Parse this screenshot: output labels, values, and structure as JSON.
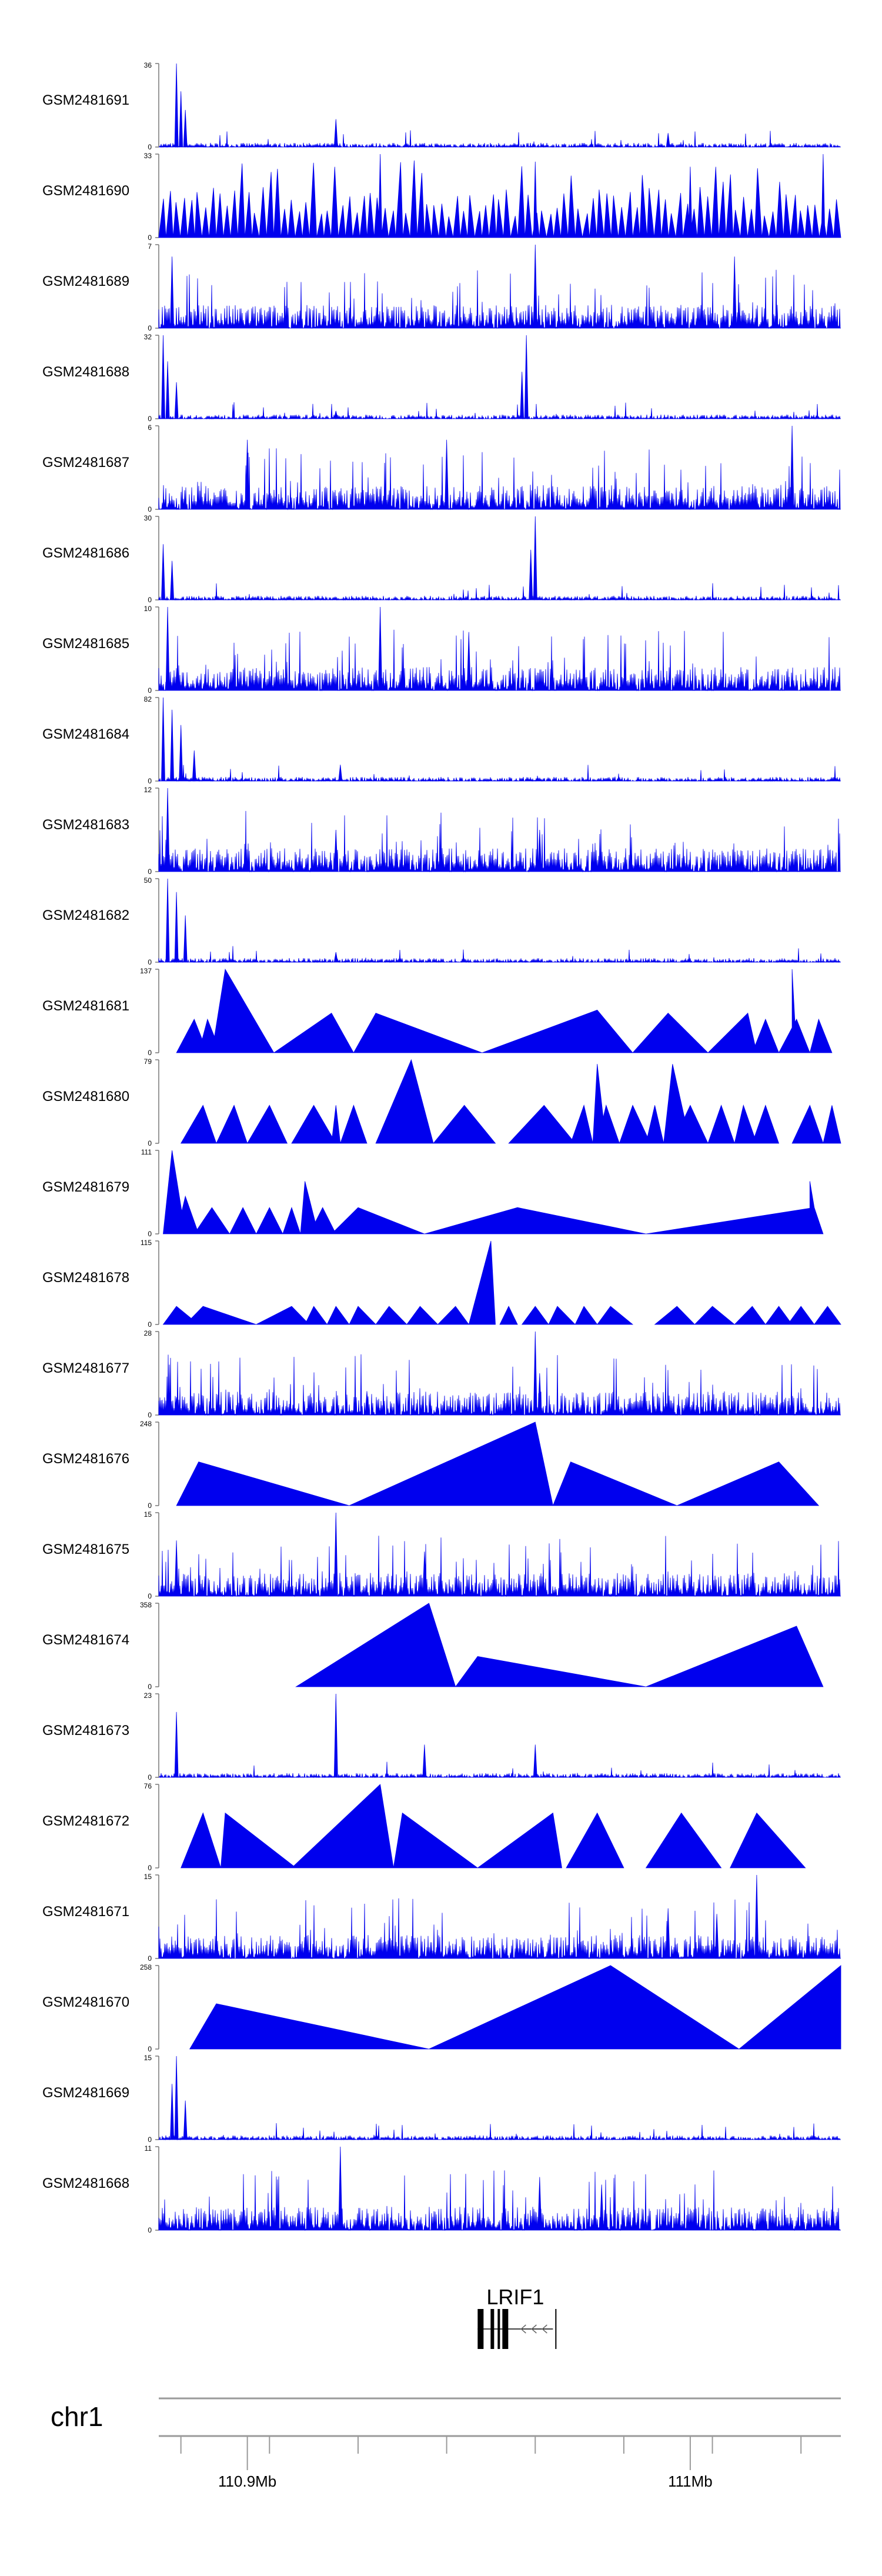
{
  "chart_data": {
    "type": "area",
    "title": "",
    "color": "#0000ee",
    "genome": {
      "chromosome": "chr1",
      "ticks": [
        "110.9Mb",
        "111Mb"
      ],
      "tick_values_mb": [
        110.9,
        111.0
      ],
      "range_mb": [
        110.88,
        111.034
      ]
    },
    "gene": {
      "name": "LRIF1",
      "strand": "-",
      "start_mb": 110.952,
      "end_mb": 110.969
    },
    "tracks": [
      {
        "name": "GSM2481691",
        "ymax": 36,
        "style": "spiky",
        "peaks": [
          {
            "x": 110.884,
            "y": 36
          },
          {
            "x": 110.885,
            "y": 24
          },
          {
            "x": 110.886,
            "y": 16
          },
          {
            "x": 110.92,
            "y": 12
          },
          {
            "x": 110.995,
            "y": 6
          }
        ]
      },
      {
        "name": "GSM2481690",
        "ymax": 33,
        "style": "dense_tri",
        "peaks": [
          {
            "x": 110.93,
            "y": 33
          },
          {
            "x": 110.965,
            "y": 30
          },
          {
            "x": 111.0,
            "y": 28
          },
          {
            "x": 111.03,
            "y": 33
          }
        ]
      },
      {
        "name": "GSM2481689",
        "ymax": 7,
        "style": "noise",
        "peaks": [
          {
            "x": 110.965,
            "y": 7
          },
          {
            "x": 110.883,
            "y": 6
          },
          {
            "x": 111.01,
            "y": 6
          }
        ]
      },
      {
        "name": "GSM2481688",
        "ymax": 32,
        "style": "spiky",
        "peaks": [
          {
            "x": 110.881,
            "y": 32
          },
          {
            "x": 110.882,
            "y": 22
          },
          {
            "x": 110.884,
            "y": 14
          },
          {
            "x": 110.963,
            "y": 32
          },
          {
            "x": 110.962,
            "y": 18
          },
          {
            "x": 110.92,
            "y": 3
          }
        ]
      },
      {
        "name": "GSM2481687",
        "ymax": 6,
        "style": "noise",
        "peaks": [
          {
            "x": 111.023,
            "y": 6
          },
          {
            "x": 110.945,
            "y": 5
          },
          {
            "x": 110.9,
            "y": 5
          }
        ]
      },
      {
        "name": "GSM2481686",
        "ymax": 30,
        "style": "spiky",
        "peaks": [
          {
            "x": 110.881,
            "y": 20
          },
          {
            "x": 110.883,
            "y": 14
          },
          {
            "x": 110.965,
            "y": 30
          },
          {
            "x": 110.964,
            "y": 18
          }
        ]
      },
      {
        "name": "GSM2481685",
        "ymax": 10,
        "style": "noise",
        "peaks": [
          {
            "x": 110.882,
            "y": 10
          },
          {
            "x": 110.93,
            "y": 10
          },
          {
            "x": 110.95,
            "y": 7
          }
        ]
      },
      {
        "name": "GSM2481684",
        "ymax": 82,
        "style": "spiky",
        "peaks": [
          {
            "x": 110.881,
            "y": 82
          },
          {
            "x": 110.883,
            "y": 70
          },
          {
            "x": 110.885,
            "y": 55
          },
          {
            "x": 110.888,
            "y": 30
          },
          {
            "x": 110.921,
            "y": 16
          }
        ]
      },
      {
        "name": "GSM2481683",
        "ymax": 12,
        "style": "noise",
        "peaks": [
          {
            "x": 110.882,
            "y": 12
          },
          {
            "x": 110.92,
            "y": 6
          },
          {
            "x": 110.966,
            "y": 6
          }
        ]
      },
      {
        "name": "GSM2481682",
        "ymax": 50,
        "style": "spiky",
        "peaks": [
          {
            "x": 110.882,
            "y": 50
          },
          {
            "x": 110.884,
            "y": 42
          },
          {
            "x": 110.886,
            "y": 28
          },
          {
            "x": 110.92,
            "y": 6
          }
        ]
      },
      {
        "name": "GSM2481681",
        "ymax": 137,
        "style": "tri",
        "triangles": [
          [
            110.884,
            110.888,
            110.891,
            55
          ],
          [
            110.889,
            110.891,
            110.894,
            55
          ],
          [
            110.892,
            110.895,
            110.906,
            137
          ],
          [
            110.906,
            110.919,
            110.924,
            65
          ],
          [
            110.924,
            110.929,
            110.953,
            65
          ],
          [
            110.953,
            110.979,
            110.987,
            70
          ],
          [
            110.987,
            110.995,
            111.004,
            65
          ],
          [
            111.004,
            111.013,
            111.015,
            65
          ],
          [
            111.014,
            111.017,
            111.02,
            55
          ],
          [
            111.02,
            111.024,
            111.027,
            55
          ],
          [
            111.023,
            111.023,
            111.024,
            137
          ],
          [
            111.027,
            111.029,
            111.032,
            55
          ]
        ]
      },
      {
        "name": "GSM2481680",
        "ymax": 79,
        "style": "tri",
        "triangles": [
          [
            110.885,
            110.89,
            110.893,
            36
          ],
          [
            110.893,
            110.897,
            110.9,
            36
          ],
          [
            110.9,
            110.905,
            110.909,
            36
          ],
          [
            110.91,
            110.915,
            110.92,
            36
          ],
          [
            110.919,
            110.92,
            110.921,
            36
          ],
          [
            110.921,
            110.924,
            110.927,
            36
          ],
          [
            110.929,
            110.937,
            110.942,
            79
          ],
          [
            110.942,
            110.949,
            110.956,
            36
          ],
          [
            110.959,
            110.967,
            110.974,
            36
          ],
          [
            110.973,
            110.976,
            110.978,
            36
          ],
          [
            110.978,
            110.979,
            110.981,
            75
          ],
          [
            110.979,
            110.981,
            110.984,
            36
          ],
          [
            110.984,
            110.987,
            110.991,
            36
          ],
          [
            110.99,
            110.992,
            110.994,
            36
          ],
          [
            110.994,
            110.996,
            111.0,
            75
          ],
          [
            110.996,
            111.0,
            111.004,
            36
          ],
          [
            111.004,
            111.007,
            111.01,
            36
          ],
          [
            111.01,
            111.012,
            111.015,
            36
          ],
          [
            111.014,
            111.017,
            111.02,
            36
          ],
          [
            111.023,
            111.027,
            111.03,
            36
          ],
          [
            111.03,
            111.032,
            111.034,
            36
          ]
        ]
      },
      {
        "name": "GSM2481679",
        "ymax": 111,
        "style": "tri",
        "triangles": [
          [
            110.881,
            110.883,
            110.886,
            111
          ],
          [
            110.884,
            110.886,
            110.889,
            50
          ],
          [
            110.888,
            110.892,
            110.896,
            35
          ],
          [
            110.896,
            110.899,
            110.902,
            35
          ],
          [
            110.902,
            110.905,
            110.908,
            35
          ],
          [
            110.908,
            110.91,
            110.912,
            35
          ],
          [
            110.912,
            110.913,
            110.916,
            70
          ],
          [
            110.914,
            110.917,
            110.92,
            35
          ],
          [
            110.919,
            110.925,
            110.94,
            35
          ],
          [
            110.94,
            110.961,
            110.99,
            35
          ],
          [
            110.99,
            111.028,
            111.03,
            35
          ],
          [
            111.027,
            111.027,
            111.029,
            70
          ]
        ]
      },
      {
        "name": "GSM2481678",
        "ymax": 115,
        "style": "tri",
        "triangles": [
          [
            110.881,
            110.884,
            110.889,
            25
          ],
          [
            110.886,
            110.89,
            110.902,
            25
          ],
          [
            110.902,
            110.91,
            110.914,
            25
          ],
          [
            110.913,
            110.915,
            110.918,
            25
          ],
          [
            110.918,
            110.92,
            110.923,
            25
          ],
          [
            110.923,
            110.925,
            110.929,
            25
          ],
          [
            110.929,
            110.932,
            110.936,
            25
          ],
          [
            110.936,
            110.939,
            110.943,
            25
          ],
          [
            110.943,
            110.947,
            110.95,
            25
          ],
          [
            110.95,
            110.955,
            110.956,
            115
          ],
          [
            110.957,
            110.959,
            110.961,
            25
          ],
          [
            110.962,
            110.965,
            110.968,
            25
          ],
          [
            110.968,
            110.97,
            110.974,
            25
          ],
          [
            110.974,
            110.976,
            110.979,
            25
          ],
          [
            110.979,
            110.982,
            110.987,
            25
          ],
          [
            110.992,
            110.997,
            111.001,
            25
          ],
          [
            111.001,
            111.005,
            111.01,
            25
          ],
          [
            111.01,
            111.014,
            111.017,
            25
          ],
          [
            111.017,
            111.02,
            111.023,
            25
          ],
          [
            111.022,
            111.025,
            111.028,
            25
          ],
          [
            111.028,
            111.031,
            111.034,
            25
          ]
        ]
      },
      {
        "name": "GSM2481677",
        "ymax": 28,
        "style": "noise",
        "peaks": [
          {
            "x": 110.965,
            "y": 28
          },
          {
            "x": 110.966,
            "y": 14
          },
          {
            "x": 110.927,
            "y": 8
          },
          {
            "x": 110.884,
            "y": 6
          }
        ]
      },
      {
        "name": "GSM2481676",
        "ymax": 248,
        "style": "tri",
        "triangles": [
          [
            110.884,
            110.889,
            110.923,
            130
          ],
          [
            110.923,
            110.965,
            110.969,
            248
          ],
          [
            110.969,
            110.973,
            110.997,
            130
          ],
          [
            110.997,
            111.02,
            111.029,
            130
          ]
        ]
      },
      {
        "name": "GSM2481675",
        "ymax": 15,
        "style": "noise",
        "peaks": [
          {
            "x": 110.884,
            "y": 10
          },
          {
            "x": 110.92,
            "y": 15
          },
          {
            "x": 110.94,
            "y": 8
          }
        ]
      },
      {
        "name": "GSM2481674",
        "ymax": 358,
        "style": "tri",
        "triangles": [
          [
            110.911,
            110.941,
            110.947,
            358
          ],
          [
            110.947,
            110.952,
            110.99,
            130
          ],
          [
            110.99,
            111.024,
            111.03,
            260
          ]
        ]
      },
      {
        "name": "GSM2481673",
        "ymax": 23,
        "style": "spiky",
        "peaks": [
          {
            "x": 110.884,
            "y": 18
          },
          {
            "x": 110.92,
            "y": 23
          },
          {
            "x": 110.94,
            "y": 9
          },
          {
            "x": 110.965,
            "y": 9
          }
        ]
      },
      {
        "name": "GSM2481672",
        "ymax": 76,
        "style": "tri",
        "triangles": [
          [
            110.885,
            110.89,
            110.894,
            50
          ],
          [
            110.894,
            110.895,
            110.911,
            50
          ],
          [
            110.91,
            110.93,
            110.933,
            76
          ],
          [
            110.933,
            110.935,
            110.952,
            50
          ],
          [
            110.952,
            110.969,
            110.971,
            50
          ],
          [
            110.972,
            110.979,
            110.985,
            50
          ],
          [
            110.99,
            110.998,
            111.007,
            50
          ],
          [
            111.009,
            111.015,
            111.026,
            50
          ]
        ]
      },
      {
        "name": "GSM2481671",
        "ymax": 15,
        "style": "noise",
        "peaks": [
          {
            "x": 111.015,
            "y": 15
          },
          {
            "x": 110.995,
            "y": 9
          },
          {
            "x": 111.006,
            "y": 8
          }
        ]
      },
      {
        "name": "GSM2481670",
        "ymax": 258,
        "style": "tri",
        "triangles": [
          [
            110.887,
            110.893,
            110.941,
            140
          ],
          [
            110.941,
            110.982,
            111.011,
            258
          ],
          [
            111.011,
            111.034,
            111.034,
            258
          ]
        ]
      },
      {
        "name": "GSM2481669",
        "ymax": 15,
        "style": "spiky",
        "peaks": [
          {
            "x": 110.884,
            "y": 15
          },
          {
            "x": 110.883,
            "y": 10
          },
          {
            "x": 110.886,
            "y": 7
          }
        ]
      },
      {
        "name": "GSM2481668",
        "ymax": 11,
        "style": "noise",
        "peaks": [
          {
            "x": 110.921,
            "y": 11
          },
          {
            "x": 110.966,
            "y": 7
          },
          {
            "x": 110.98,
            "y": 6
          }
        ]
      }
    ]
  }
}
